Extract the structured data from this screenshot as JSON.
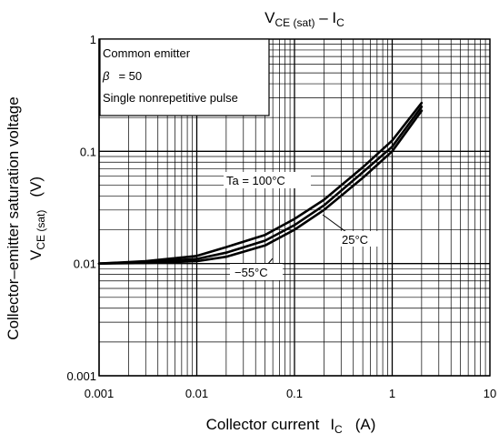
{
  "chart_data": {
    "type": "line",
    "title": "Vₑₑ",
    "title_main": "V",
    "title_sub1": "CE (sat)",
    "title_mid": " – I",
    "title_sub2": "C",
    "x_scale": "log",
    "y_scale": "log",
    "xlim": [
      0.001,
      10
    ],
    "ylim": [
      0.001,
      1
    ],
    "x_tick_labels": [
      "0.001",
      "0.01",
      "0.1",
      "1",
      "10"
    ],
    "y_tick_labels": [
      "0.001",
      "0.01",
      "0.1",
      "1"
    ],
    "xlabel_main": "Collector current",
    "xlabel_sym": "I",
    "xlabel_sub": "C",
    "xlabel_unit": "(A)",
    "ylabel_line1": "Collector–emitter saturation voltage",
    "ylabel_line2_sym": "V",
    "ylabel_line2_sub": "CE (sat)",
    "ylabel_line2_unit": "(V)",
    "grid": true,
    "conditions": {
      "line1": "Common emitter",
      "line2_sym": "β",
      "line2_val": "= 50",
      "line3": "Single nonrepetitive pulse"
    },
    "series": [
      {
        "name": "Ta = 100°C",
        "x": [
          0.001,
          0.003,
          0.01,
          0.02,
          0.05,
          0.1,
          0.2,
          0.5,
          1,
          2
        ],
        "y": [
          0.01,
          0.0101,
          0.0105,
          0.0115,
          0.0145,
          0.02,
          0.03,
          0.058,
          0.1,
          0.23
        ]
      },
      {
        "name": "25°C",
        "x": [
          0.001,
          0.003,
          0.01,
          0.02,
          0.05,
          0.1,
          0.2,
          0.5,
          1,
          2
        ],
        "y": [
          0.01,
          0.0103,
          0.011,
          0.0125,
          0.016,
          0.022,
          0.033,
          0.065,
          0.11,
          0.25
        ]
      },
      {
        "name": "−55°C",
        "x": [
          0.001,
          0.003,
          0.01,
          0.02,
          0.05,
          0.1,
          0.2,
          0.5,
          1,
          2
        ],
        "y": [
          0.01,
          0.0105,
          0.0117,
          0.014,
          0.018,
          0.025,
          0.037,
          0.072,
          0.125,
          0.27
        ]
      }
    ]
  }
}
